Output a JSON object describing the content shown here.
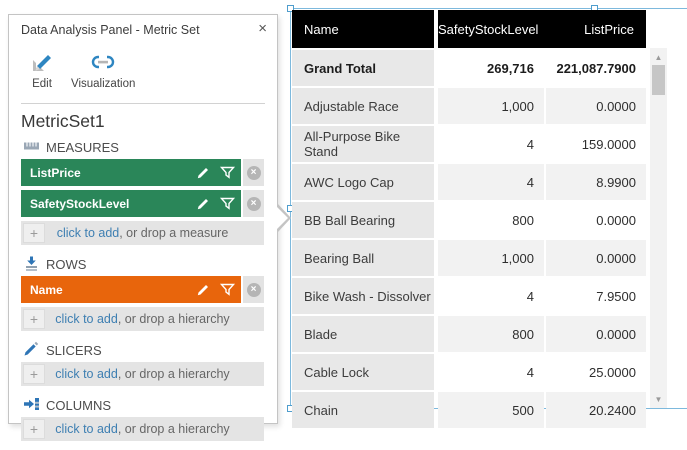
{
  "panel": {
    "title": "Data Analysis Panel - Metric Set",
    "close_glyph": "×",
    "toolbar": {
      "edit_label": "Edit",
      "visualization_label": "Visualization"
    },
    "metric_set_name": "MetricSet1",
    "plus_glyph": "+",
    "sections": [
      {
        "id": "measures",
        "label": "MEASURES",
        "icon": "ruler-icon",
        "chip_color": "#2a8659",
        "chips": [
          "ListPrice",
          "SafetyStockLevel"
        ],
        "add_link": "click to add",
        "add_rest": ", or drop a measure"
      },
      {
        "id": "rows",
        "label": "ROWS",
        "icon": "rows-arrow-icon",
        "chip_color": "#e8650c",
        "chips": [
          "Name"
        ],
        "add_link": "click to add",
        "add_rest": ", or drop a hierarchy"
      },
      {
        "id": "slicers",
        "label": "SLICERS",
        "icon": "slicer-pen-icon",
        "chip_color": "",
        "chips": [],
        "add_link": "click to add",
        "add_rest": ", or drop a hierarchy"
      },
      {
        "id": "columns",
        "label": "COLUMNS",
        "icon": "columns-arrow-icon",
        "chip_color": "",
        "chips": [],
        "add_link": "click to add",
        "add_rest": ", or drop a hierarchy"
      }
    ]
  },
  "table": {
    "columns": [
      "Name",
      "SafetyStockLevel",
      "ListPrice"
    ],
    "rows": [
      {
        "name": "Grand Total",
        "values": [
          "269,716",
          "221,087.7900"
        ],
        "bold": true
      },
      {
        "name": "Adjustable Race",
        "values": [
          "1,000",
          "0.0000"
        ]
      },
      {
        "name": "All-Purpose Bike Stand",
        "values": [
          "4",
          "159.0000"
        ]
      },
      {
        "name": "AWC Logo Cap",
        "values": [
          "4",
          "8.9900"
        ]
      },
      {
        "name": "BB Ball Bearing",
        "values": [
          "800",
          "0.0000"
        ]
      },
      {
        "name": "Bearing Ball",
        "values": [
          "1,000",
          "0.0000"
        ]
      },
      {
        "name": "Bike Wash - Dissolver",
        "values": [
          "4",
          "7.9500"
        ]
      },
      {
        "name": "Blade",
        "values": [
          "800",
          "0.0000"
        ]
      },
      {
        "name": "Cable Lock",
        "values": [
          "4",
          "25.0000"
        ]
      },
      {
        "name": "Chain",
        "values": [
          "500",
          "20.2400"
        ]
      }
    ]
  },
  "scrollbar": {
    "up_glyph": "▲",
    "down_glyph": "▼"
  },
  "colors": {
    "chip_green": "#2a8659",
    "chip_orange": "#e8650c",
    "link_blue": "#3e7fb2",
    "selection_blue": "#7db9dd",
    "header_bg": "#000000",
    "icon_blue": "#2e75b6"
  }
}
